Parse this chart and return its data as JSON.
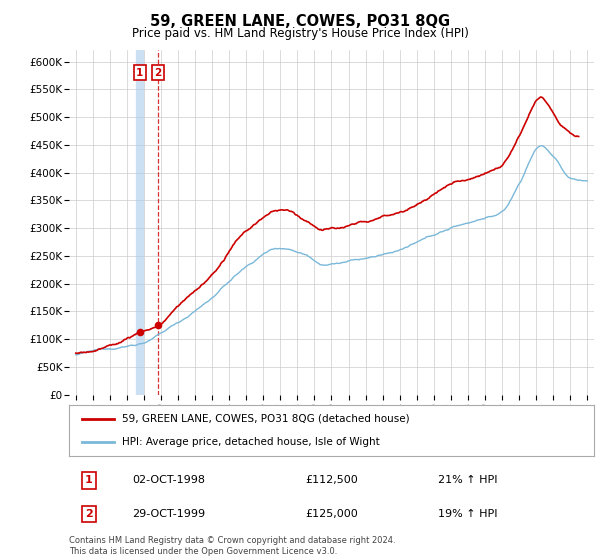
{
  "title": "59, GREEN LANE, COWES, PO31 8QG",
  "subtitle": "Price paid vs. HM Land Registry's House Price Index (HPI)",
  "hpi_label": "HPI: Average price, detached house, Isle of Wight",
  "property_label": "59, GREEN LANE, COWES, PO31 8QG (detached house)",
  "sale1_x": 1998.75,
  "sale1_price": 112500,
  "sale1_label": "1",
  "sale2_x": 1999.83,
  "sale2_price": 125000,
  "sale2_label": "2",
  "hpi_color": "#7ab8d9",
  "property_color": "#cc0000",
  "vline1_color": "#aaccee",
  "vline2_color": "#cc0000",
  "background_color": "#ffffff",
  "grid_color": "#cccccc",
  "ylim": [
    0,
    620000
  ],
  "yticks": [
    0,
    50000,
    100000,
    150000,
    200000,
    250000,
    300000,
    350000,
    400000,
    450000,
    500000,
    550000,
    600000
  ],
  "xlim_min": 1994.6,
  "xlim_max": 2025.4,
  "footer": "Contains HM Land Registry data © Crown copyright and database right 2024.\nThis data is licensed under the Open Government Licence v3.0.",
  "table_row1": [
    "1",
    "02-OCT-1998",
    "£112,500",
    "21% ↑ HPI"
  ],
  "table_row2": [
    "2",
    "29-OCT-1999",
    "£125,000",
    "19% ↑ HPI"
  ]
}
